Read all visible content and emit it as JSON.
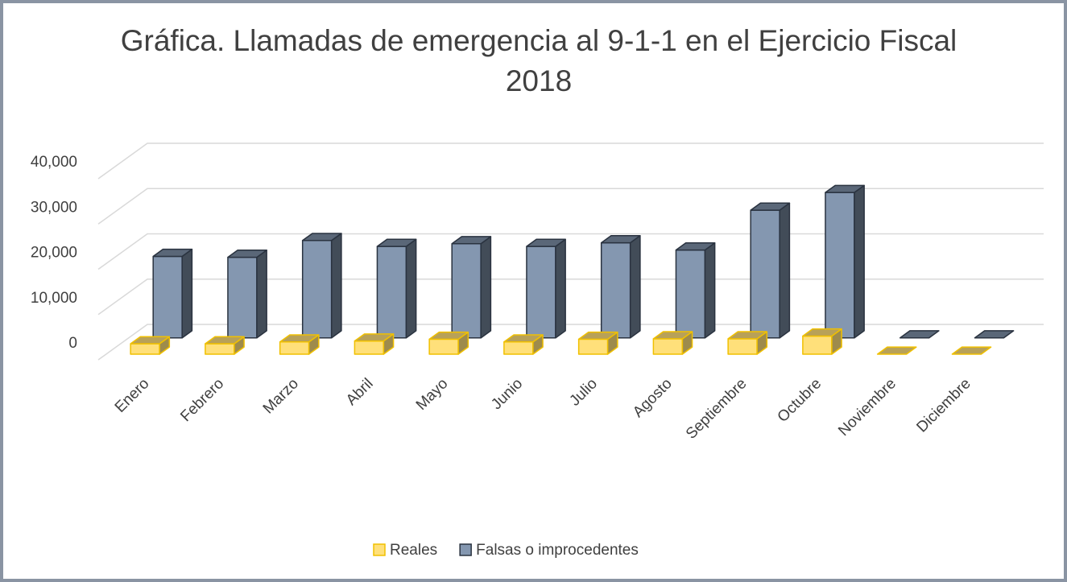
{
  "chart_data": {
    "type": "bar3d",
    "title": "Gráfica. Llamadas de emergencia al 9-1-1 en el Ejercicio Fiscal 2018",
    "categories": [
      "Enero",
      "Febrero",
      "Marzo",
      "Abril",
      "Mayo",
      "Junio",
      "Julio",
      "Agosto",
      "Septiembre",
      "Octubre",
      "Noviembre",
      "Diciembre"
    ],
    "series": [
      {
        "name": "Reales",
        "color": "#ffe07a",
        "values": [
          2300,
          2300,
          2700,
          2900,
          3300,
          2700,
          3300,
          3400,
          3400,
          4000,
          0,
          0
        ]
      },
      {
        "name": "Falsas o improcedentes",
        "color": "#8497b0",
        "values": [
          18000,
          17800,
          21500,
          20200,
          20800,
          20200,
          21000,
          19400,
          28200,
          32100,
          0,
          0
        ]
      }
    ],
    "ylim": [
      0,
      40000
    ],
    "yticks": [
      0,
      {
        "value": 10000,
        "label": "10,000"
      },
      {
        "value": 20000,
        "label": "20,000"
      },
      {
        "value": 30000,
        "label": "30,000"
      },
      {
        "value": 40000,
        "label": "40,000"
      }
    ],
    "grid": true,
    "legend": "bottom"
  }
}
